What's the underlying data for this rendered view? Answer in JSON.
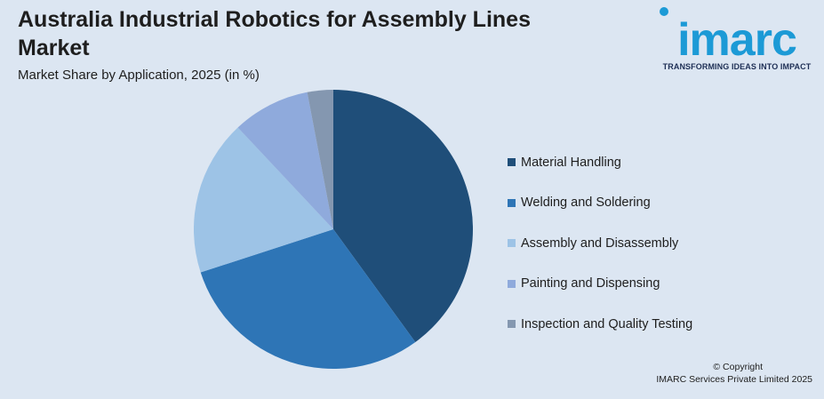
{
  "header": {
    "title": "Australia Industrial Robotics for Assembly Lines Market",
    "subtitle": "Market Share by Application, 2025 (in %)"
  },
  "logo": {
    "word": "imarc",
    "tagline": "TRANSFORMING IDEAS INTO IMPACT",
    "color": "#1c9ad6"
  },
  "chart_data": {
    "type": "pie",
    "title": "Australia Industrial Robotics for Assembly Lines Market",
    "subtitle": "Market Share by Application, 2025 (in %)",
    "legend_position": "right",
    "start_angle_deg": 0,
    "direction": "clockwise",
    "slices": [
      {
        "label": "Material Handling",
        "value": 40,
        "color": "#1f4e79"
      },
      {
        "label": "Welding and Soldering",
        "value": 30,
        "color": "#2e75b6"
      },
      {
        "label": "Assembly and Disassembly",
        "value": 18,
        "color": "#9dc3e6"
      },
      {
        "label": "Painting and Dispensing",
        "value": 9,
        "color": "#8faadc"
      },
      {
        "label": "Inspection and Quality Testing",
        "value": 3,
        "color": "#8497b0"
      }
    ]
  },
  "footer": {
    "copyright_line1": "© Copyright",
    "copyright_line2": "IMARC Services Private Limited 2025"
  }
}
